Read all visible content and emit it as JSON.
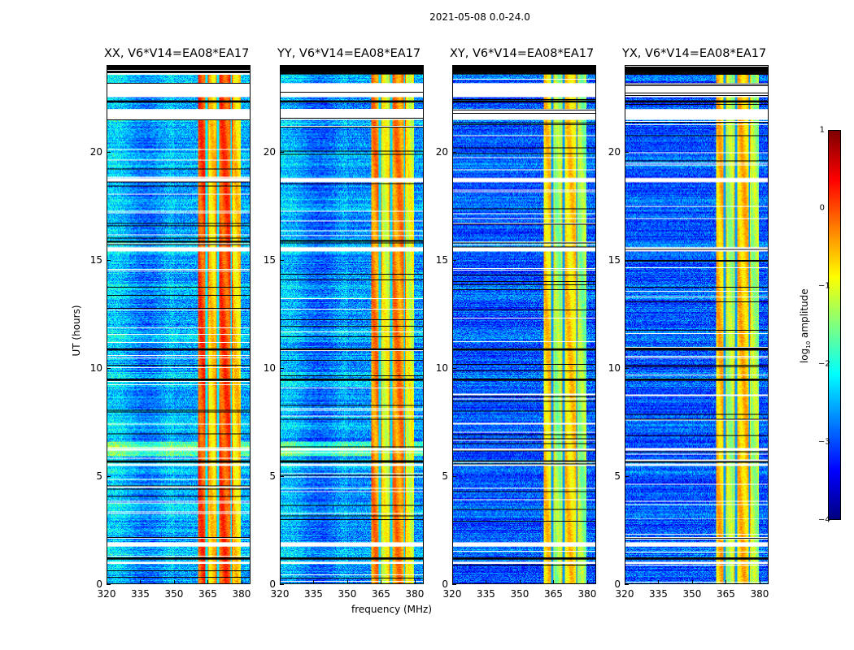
{
  "suptitle": "2021-05-08 0.0-24.0",
  "chart_data": {
    "type": "heatmap",
    "title": "2021-05-08 0.0-24.0",
    "xlabel": "frequency (MHz)",
    "ylabel": "UT (hours)",
    "xlim": [
      320,
      384
    ],
    "ylim": [
      0,
      24
    ],
    "xticks": [
      320,
      335,
      350,
      365,
      380
    ],
    "yticks": [
      0,
      5,
      10,
      15,
      20
    ],
    "colorbar": {
      "label": "log10 amplitude",
      "label_main": "log",
      "label_sub": "10",
      "label_tail": " amplitude",
      "range": [
        -4,
        1
      ],
      "ticks": [
        1,
        0,
        -1,
        -2,
        -3,
        -4
      ],
      "colormap": "jet"
    },
    "panels": [
      {
        "name": "XX",
        "title": "XX, V6*V14=EA08*EA17",
        "band_level": 0.0,
        "bg_level": -2.6
      },
      {
        "name": "YY",
        "title": "YY, V6*V14=EA08*EA17",
        "band_level": -0.3,
        "bg_level": -2.7
      },
      {
        "name": "XY",
        "title": "XY, V6*V14=EA08*EA17",
        "band_level": -0.7,
        "bg_level": -3.0
      },
      {
        "name": "YX",
        "title": "YX, V6*V14=EA08*EA17",
        "band_level": -0.6,
        "bg_level": -3.0
      }
    ],
    "bright_band_MHz": [
      360.5,
      380
    ],
    "band_gaps_MHz": [
      364.5,
      369.5,
      375.5
    ],
    "flagged_white_hours": [
      [
        22.55,
        23.2
      ],
      [
        21.5,
        22.0
      ],
      [
        18.6,
        18.8
      ],
      [
        15.4,
        15.6
      ],
      [
        6.15,
        6.25
      ],
      [
        5.45,
        5.55
      ],
      [
        1.7,
        1.9
      ],
      [
        0.9,
        1.0
      ]
    ],
    "flagged_black_hours": [
      [
        23.6,
        24.0
      ],
      [
        22.3,
        22.4
      ],
      [
        10.8,
        10.9
      ],
      [
        9.4,
        9.5
      ],
      [
        5.6,
        5.7
      ],
      [
        1.1,
        1.2
      ]
    ]
  },
  "ui": {
    "xlabel": "frequency (MHz)",
    "ylabel": "UT (hours)"
  }
}
